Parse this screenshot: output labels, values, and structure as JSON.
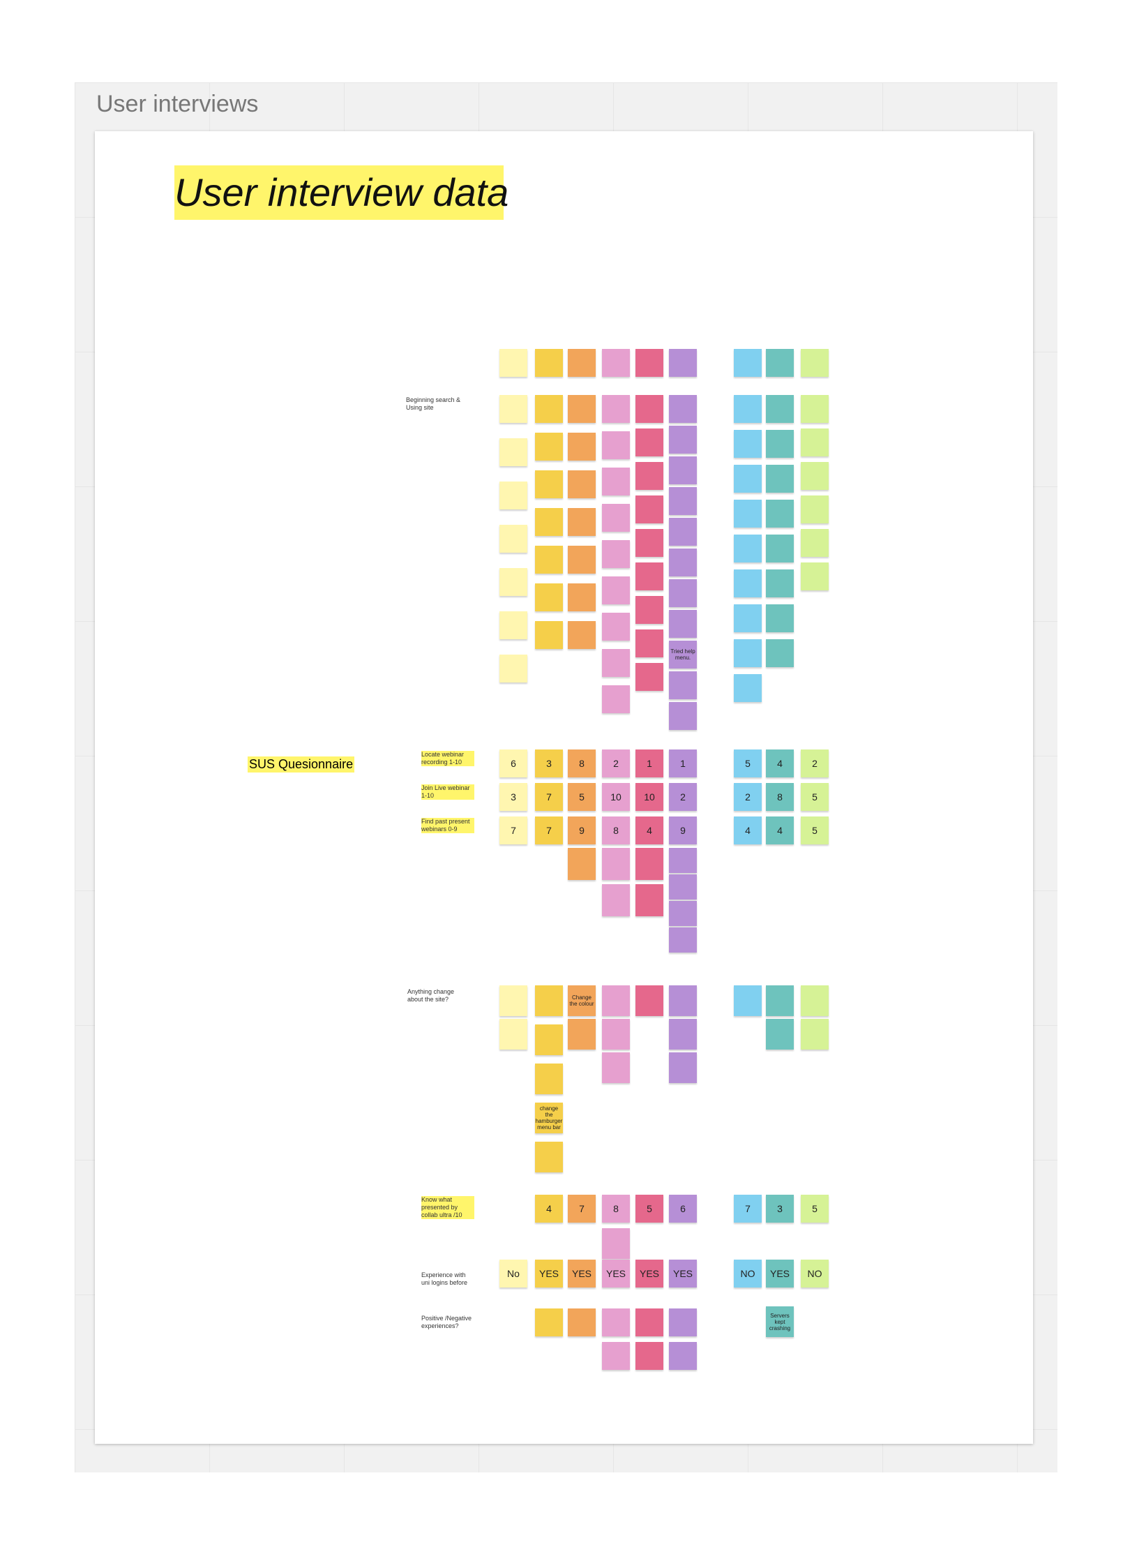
{
  "board": {
    "frame_title": "User interviews",
    "heading": "User interview data"
  },
  "sections": {
    "beginning": "Beginning search & Using site",
    "sus": "SUS Quesionnaire",
    "anything_change": "Anything change about the site?"
  },
  "sus_rows": [
    {
      "label": "Locate webinar recording 1-10",
      "scores": [
        6,
        3,
        8,
        2,
        1,
        1,
        5,
        4,
        2
      ]
    },
    {
      "label": "Join Live webinar 1-10",
      "scores": [
        3,
        7,
        5,
        10,
        10,
        2,
        2,
        8,
        5
      ]
    },
    {
      "label": "Find past present webinars 0-9",
      "scores": [
        7,
        7,
        9,
        8,
        4,
        9,
        4,
        4,
        5
      ]
    }
  ],
  "collab": {
    "label": "Know what presented by collab ultra /10",
    "scores": [
      null,
      4,
      7,
      8,
      5,
      6,
      7,
      3,
      5
    ]
  },
  "logins": {
    "label": "Experience with uni logins before",
    "answers": [
      "No",
      "YES",
      "YES",
      "YES",
      "YES",
      "YES",
      "NO",
      "YES",
      "NO"
    ]
  },
  "experiences": {
    "label": "Positive /Negative experiences?"
  },
  "notes": {
    "help_menu": "Tried help menu.",
    "change_colour": "Change the colour",
    "hamburger": "change the hamburger menu bar",
    "servers": "Servers kept crashing"
  }
}
